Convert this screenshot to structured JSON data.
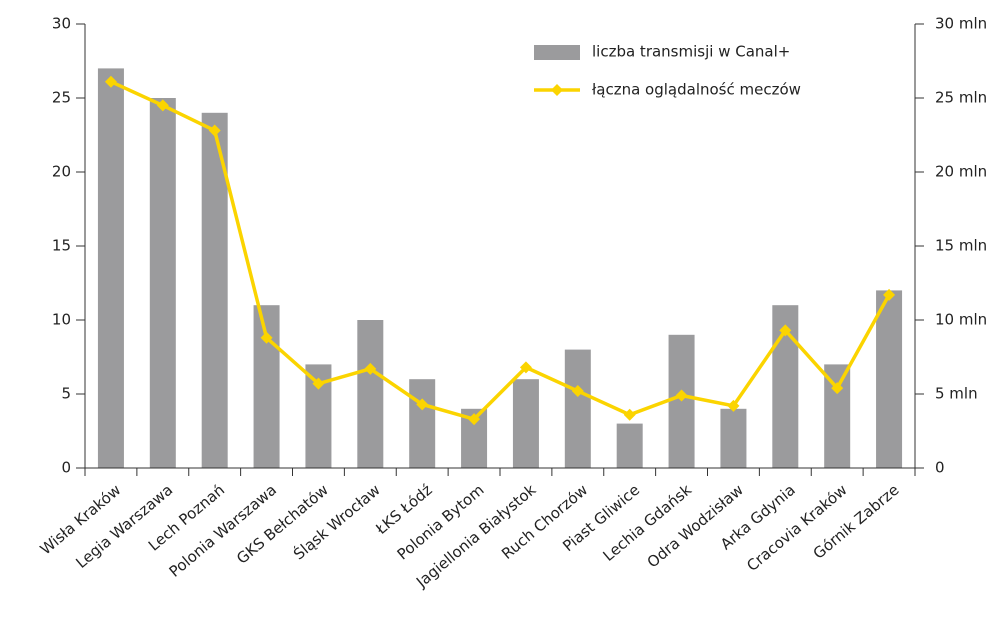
{
  "chart_data": {
    "type": "bar_line",
    "categories": [
      "Wisła Kraków",
      "Legia Warszawa",
      "Lech Poznań",
      "Polonia Warszawa",
      "GKS Bełchatów",
      "Śląsk Wrocław",
      "ŁKS Łódź",
      "Polonia Bytom",
      "Jagiellonia Białystok",
      "Ruch Chorzów",
      "Piast Gliwice",
      "Lechia Gdańsk",
      "Odra Wodzisław",
      "Arka Gdynia",
      "Cracovia Kraków",
      "Górnik Zabrze"
    ],
    "series": [
      {
        "name": "liczba transmisji w Canal+",
        "type": "bar",
        "color": "#9b9b9d",
        "values": [
          27,
          25,
          24,
          11,
          7,
          10,
          6,
          4,
          6,
          8,
          3,
          9,
          4,
          11,
          7,
          12
        ]
      },
      {
        "name": "łączna oglądalność meczów",
        "type": "line",
        "axis": "y2",
        "color": "#fbd400",
        "values": [
          26.1,
          24.5,
          22.8,
          8.8,
          5.7,
          6.7,
          4.3,
          3.3,
          6.8,
          5.2,
          3.6,
          4.9,
          4.2,
          9.3,
          5.4,
          11.7
        ]
      }
    ],
    "ylim": [
      0,
      30
    ],
    "yticks": [
      0,
      5,
      10,
      15,
      20,
      25,
      30
    ],
    "y2lim": [
      0,
      30
    ],
    "y2ticks": [
      0,
      {
        "value": 5,
        "label": "5 mln"
      },
      {
        "value": 10,
        "label": "10 mln"
      },
      {
        "value": 15,
        "label": "15 mln"
      },
      {
        "value": 20,
        "label": "20 mln"
      },
      {
        "value": 25,
        "label": "25 mln"
      },
      {
        "value": 30,
        "label": "30 mln"
      }
    ],
    "legend": "top-right"
  }
}
